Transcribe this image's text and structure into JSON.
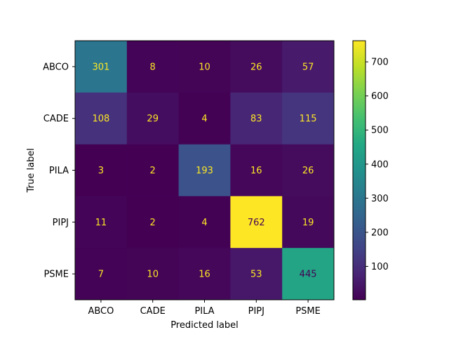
{
  "chart_data": {
    "type": "heatmap",
    "title": "",
    "xlabel": "Predicted label",
    "ylabel": "True label",
    "x_categories": [
      "ABCO",
      "CADE",
      "PILA",
      "PIPJ",
      "PSME"
    ],
    "y_categories": [
      "ABCO",
      "CADE",
      "PILA",
      "PIPJ",
      "PSME"
    ],
    "values": [
      [
        301,
        8,
        10,
        26,
        57
      ],
      [
        108,
        29,
        4,
        83,
        115
      ],
      [
        3,
        2,
        193,
        16,
        26
      ],
      [
        11,
        2,
        4,
        762,
        19
      ],
      [
        7,
        10,
        16,
        53,
        445
      ]
    ],
    "colormap": "viridis",
    "colorbar": {
      "vmin": 2,
      "vmax": 762,
      "ticks": [
        100,
        200,
        300,
        400,
        500,
        600,
        700
      ],
      "tick_labels": [
        "100",
        "200",
        "300",
        "400",
        "500",
        "600",
        "700"
      ]
    },
    "annotation_colors": {
      "light_text": "#fde725",
      "dark_text": "#440154"
    }
  }
}
